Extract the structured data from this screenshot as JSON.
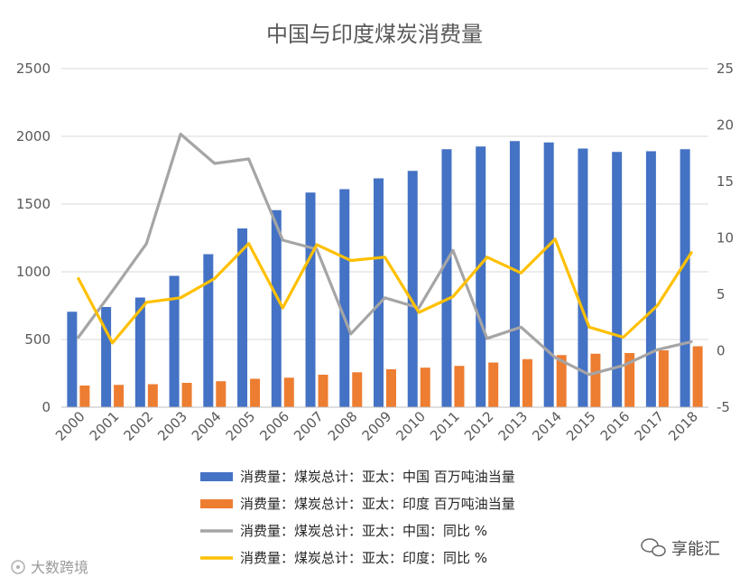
{
  "chart_data": {
    "type": "bar",
    "title": "中国与印度煤炭消费量",
    "categories": [
      "2000",
      "2001",
      "2002",
      "2003",
      "2004",
      "2005",
      "2006",
      "2007",
      "2008",
      "2009",
      "2010",
      "2011",
      "2012",
      "2013",
      "2014",
      "2015",
      "2016",
      "2017",
      "2018"
    ],
    "left_axis": {
      "ylim": [
        0,
        2500
      ],
      "ticks": [
        "0",
        "500",
        "1000",
        "1500",
        "2000",
        "2500"
      ],
      "grid": true
    },
    "right_axis": {
      "ylim": [
        -5,
        25
      ],
      "ticks": [
        "-5",
        "0",
        "5",
        "10",
        "15",
        "20",
        "25"
      ]
    },
    "series": [
      {
        "name": "消费量：煤炭总计：亚太：中国 百万吨油当量",
        "type": "bar",
        "axis": "left",
        "color": "#4472C4",
        "values": [
          705,
          740,
          810,
          970,
          1130,
          1320,
          1455,
          1585,
          1610,
          1690,
          1745,
          1905,
          1925,
          1965,
          1955,
          1910,
          1885,
          1890,
          1905
        ]
      },
      {
        "name": "消费量：煤炭总计：亚太：印度 百万吨油当量",
        "type": "bar",
        "axis": "left",
        "color": "#ED7D31",
        "values": [
          160,
          165,
          170,
          180,
          192,
          210,
          218,
          240,
          258,
          280,
          292,
          305,
          330,
          355,
          385,
          395,
          400,
          420,
          450
        ]
      },
      {
        "name": "消费量：煤炭总计：亚太：中国：同比 %",
        "type": "line",
        "axis": "right",
        "color": "#A5A5A5",
        "values": [
          1.2,
          5.3,
          9.5,
          19.2,
          16.6,
          17.0,
          9.8,
          9.0,
          1.5,
          4.7,
          3.8,
          8.9,
          1.1,
          2.1,
          -0.6,
          -2.1,
          -1.3,
          0.1,
          0.8
        ]
      },
      {
        "name": "消费量：煤炭总计：亚太：印度：同比 %",
        "type": "line",
        "axis": "right",
        "color": "#FFC000",
        "values": [
          6.4,
          0.7,
          4.3,
          4.7,
          6.4,
          9.5,
          3.8,
          9.4,
          8.0,
          8.3,
          3.4,
          4.8,
          8.3,
          6.9,
          9.9,
          2.1,
          1.2,
          4.0,
          8.7
        ]
      }
    ],
    "legend_position": "bottom"
  },
  "watermark": {
    "left": "大数跨境",
    "right": "享能汇"
  }
}
